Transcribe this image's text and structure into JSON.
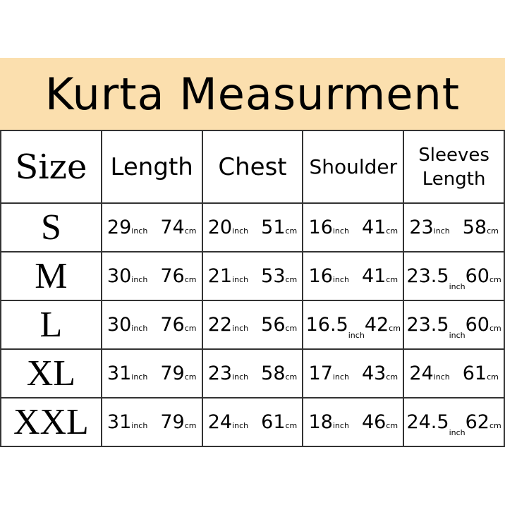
{
  "title": "Kurta Measurment",
  "headers": [
    "Size",
    "Length",
    "Chest",
    "Shoulder",
    "Sleeves Length"
  ],
  "rows": [
    {
      "size": "S",
      "length": [
        "29",
        "74"
      ],
      "chest": [
        "20",
        "51"
      ],
      "shoulder": [
        "16",
        "41"
      ],
      "sleeves": [
        "23",
        "58"
      ]
    },
    {
      "size": "M",
      "length": [
        "30",
        "76"
      ],
      "chest": [
        "21",
        "53"
      ],
      "shoulder": [
        "16",
        "41"
      ],
      "sleeves": [
        "23.5",
        "60"
      ]
    },
    {
      "size": "L",
      "length": [
        "30",
        "76"
      ],
      "chest": [
        "22",
        "56"
      ],
      "shoulder": [
        "16.5",
        "42"
      ],
      "sleeves": [
        "23.5",
        "60"
      ]
    },
    {
      "size": "XL",
      "length": [
        "31",
        "79"
      ],
      "chest": [
        "23",
        "58"
      ],
      "shoulder": [
        "17",
        "43"
      ],
      "sleeves": [
        "24",
        "61"
      ]
    },
    {
      "size": "XXL",
      "length": [
        "31",
        "79"
      ],
      "chest": [
        "24",
        "61"
      ],
      "shoulder": [
        "18",
        "46"
      ],
      "sleeves": [
        "24.5",
        "62"
      ]
    }
  ],
  "units": {
    "inch": "inch",
    "cm": "cm"
  }
}
